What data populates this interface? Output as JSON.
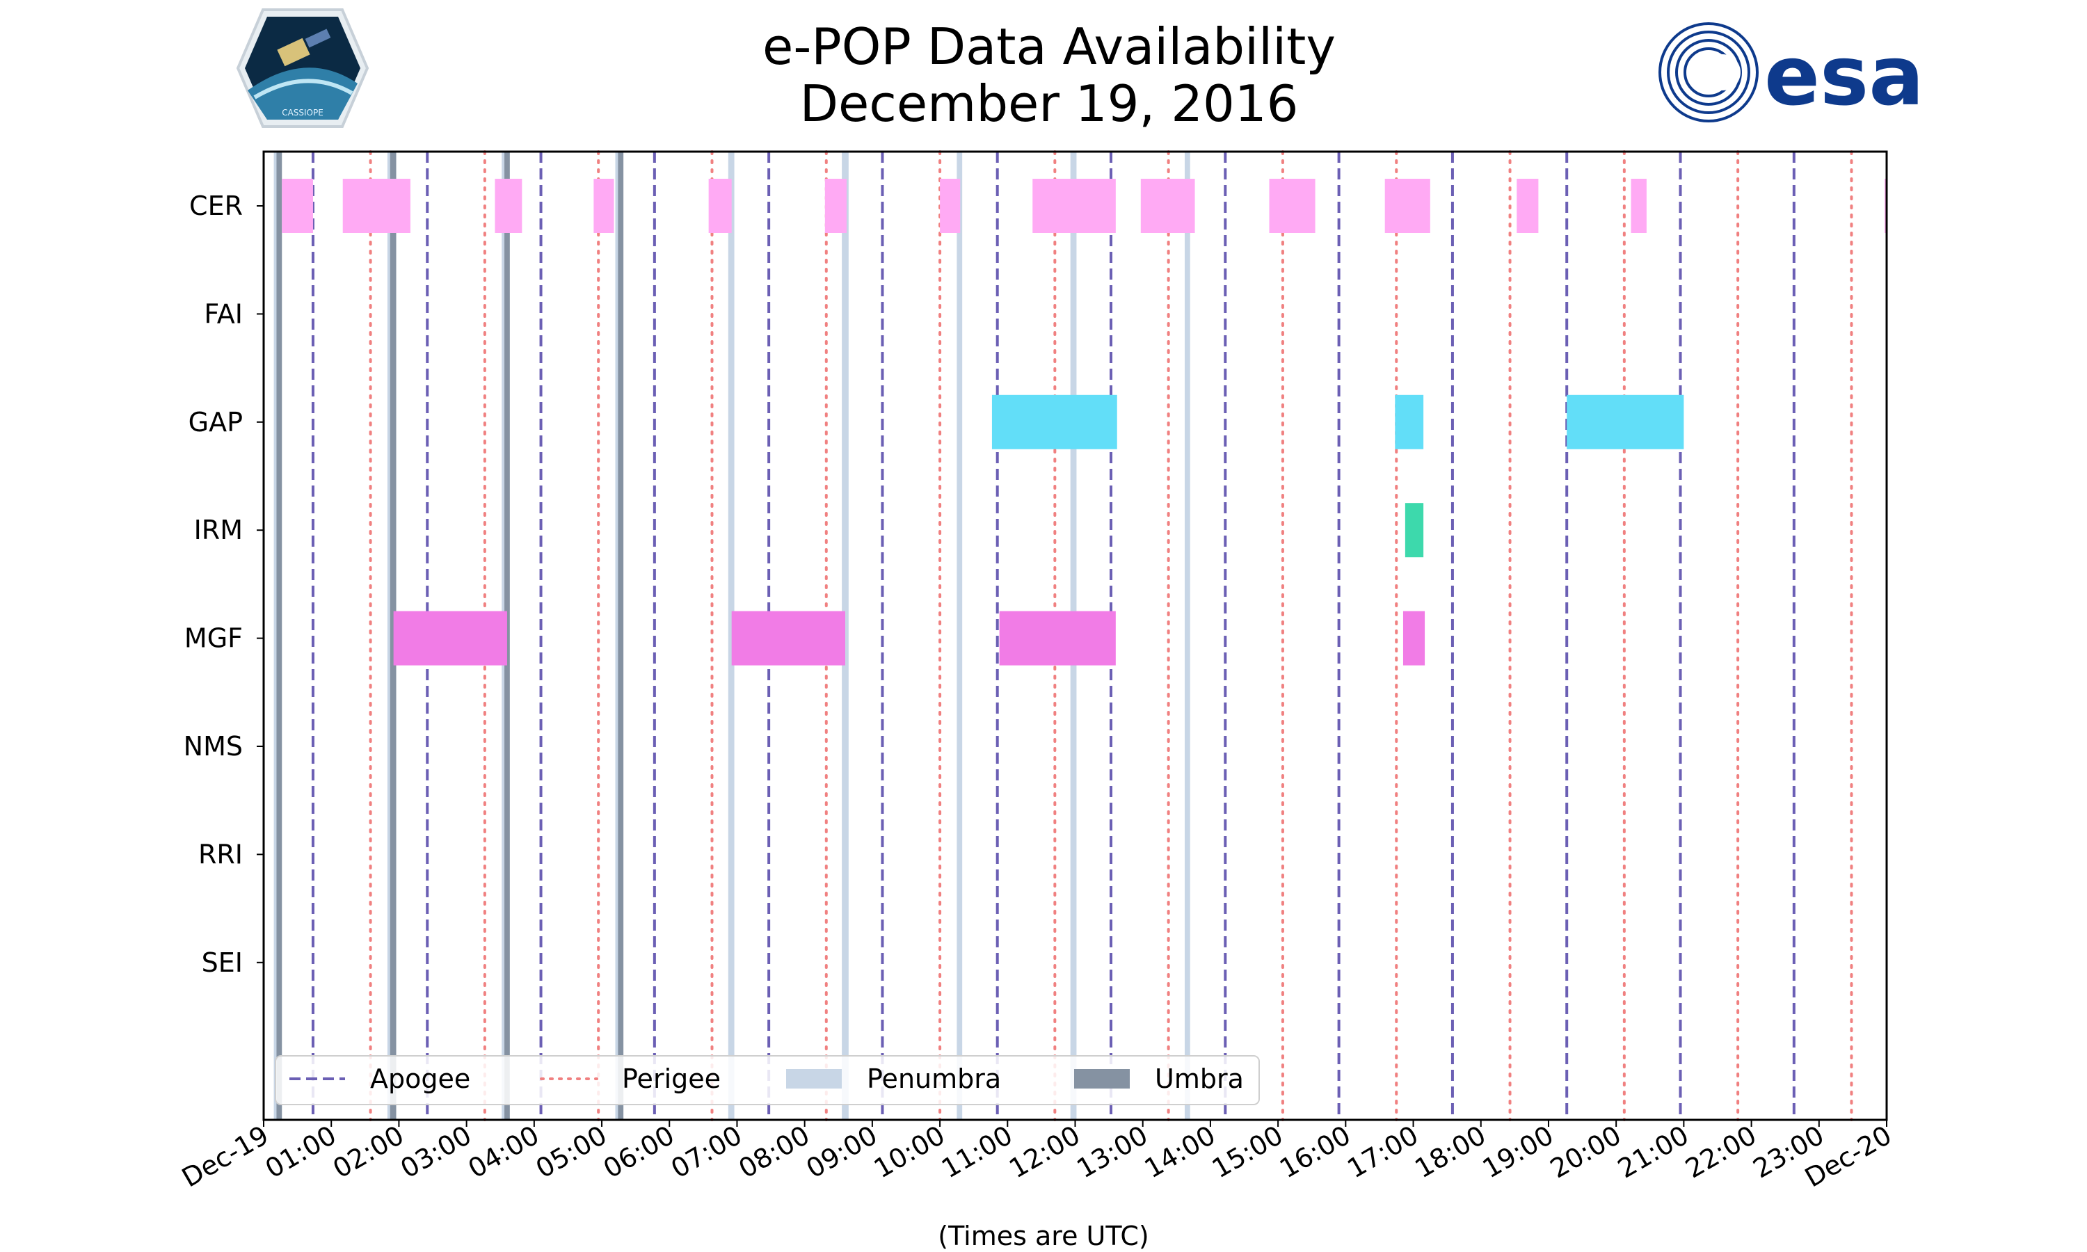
{
  "chart_data": {
    "type": "timeline",
    "title": "e-POP Data Availability",
    "subtitle": "December 19, 2016",
    "xlabel": "(Times are UTC)",
    "x_unit": "hours UTC",
    "xlim": [
      0,
      24
    ],
    "x_tick_labels": [
      "Dec-19",
      "01:00",
      "02:00",
      "03:00",
      "04:00",
      "05:00",
      "06:00",
      "07:00",
      "08:00",
      "09:00",
      "10:00",
      "11:00",
      "12:00",
      "13:00",
      "14:00",
      "15:00",
      "16:00",
      "17:00",
      "18:00",
      "19:00",
      "20:00",
      "21:00",
      "22:00",
      "23:00",
      "Dec-20"
    ],
    "instruments": [
      "CER",
      "FAI",
      "GAP",
      "IRM",
      "MGF",
      "NMS",
      "RRI",
      "SEI"
    ],
    "apogee": [
      0.73,
      2.42,
      4.1,
      5.78,
      7.47,
      9.15,
      10.85,
      12.53,
      14.22,
      15.9,
      17.58,
      19.27,
      20.95,
      22.63
    ],
    "perigee": [
      1.58,
      3.27,
      4.95,
      6.63,
      8.32,
      10.0,
      11.7,
      13.38,
      15.07,
      16.75,
      18.43,
      20.12,
      21.8,
      23.48
    ],
    "penumbra": [
      [
        0.15,
        0.23
      ],
      [
        1.83,
        1.92
      ],
      [
        3.52,
        3.6
      ],
      [
        5.2,
        5.28
      ],
      [
        6.87,
        6.96
      ],
      [
        8.55,
        8.65
      ],
      [
        10.25,
        10.33
      ],
      [
        11.93,
        12.02
      ],
      [
        13.62,
        13.7
      ]
    ],
    "umbra": [
      [
        0.19,
        0.27
      ],
      [
        1.87,
        1.96
      ],
      [
        3.56,
        3.64
      ],
      [
        5.24,
        5.32
      ]
    ],
    "series": [
      {
        "name": "CER",
        "color": "#ffaaf4",
        "intervals": [
          [
            0.27,
            0.73
          ],
          [
            1.17,
            2.17
          ],
          [
            3.42,
            3.82
          ],
          [
            4.88,
            5.18
          ],
          [
            6.58,
            6.92
          ],
          [
            8.3,
            8.62
          ],
          [
            10.0,
            10.3
          ],
          [
            11.37,
            12.6
          ],
          [
            12.97,
            13.77
          ],
          [
            14.87,
            15.55
          ],
          [
            16.58,
            17.25
          ],
          [
            18.53,
            18.85
          ],
          [
            20.22,
            20.45
          ],
          [
            23.97,
            24.0
          ]
        ]
      },
      {
        "name": "FAI",
        "color": "#ffaaf4",
        "intervals": []
      },
      {
        "name": "GAP",
        "color": "#62def8",
        "intervals": [
          [
            10.77,
            12.62
          ],
          [
            16.73,
            17.15
          ],
          [
            19.27,
            21.0
          ]
        ]
      },
      {
        "name": "IRM",
        "color": "#3dd9ac",
        "intervals": [
          [
            16.88,
            17.15
          ]
        ]
      },
      {
        "name": "MGF",
        "color": "#f17ce6",
        "intervals": [
          [
            1.92,
            3.6
          ],
          [
            6.92,
            8.6
          ],
          [
            10.88,
            12.6
          ],
          [
            16.85,
            17.17
          ]
        ]
      },
      {
        "name": "NMS",
        "color": "#ffaaf4",
        "intervals": []
      },
      {
        "name": "RRI",
        "color": "#ffaaf4",
        "intervals": []
      },
      {
        "name": "SEI",
        "color": "#ffaaf4",
        "intervals": []
      }
    ],
    "legend": {
      "placement": "lower-left",
      "entries": [
        {
          "label": "Apogee",
          "style": "dashed",
          "color": "#6b5fb4"
        },
        {
          "label": "Perigee",
          "style": "dotted",
          "color": "#f08080"
        },
        {
          "label": "Penumbra",
          "style": "band",
          "color": "#c8d6e6"
        },
        {
          "label": "Umbra",
          "style": "band",
          "color": "#8592a2"
        }
      ]
    }
  },
  "logos": {
    "left_mission_text": "CASSIOPE",
    "right_agency_text": "esa"
  },
  "colors": {
    "apogee": "#6b5fb4",
    "perigee": "#f08080",
    "penumbra": "#c8d6e6",
    "umbra": "#8592a2"
  }
}
